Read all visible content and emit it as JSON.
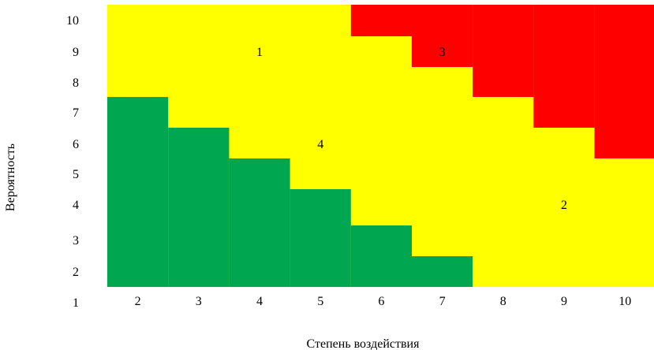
{
  "chart_data": {
    "type": "heatmap",
    "xlabel": "Степень воздействия",
    "ylabel": "Вероятность",
    "x_ticks": [
      "2",
      "3",
      "4",
      "5",
      "6",
      "7",
      "8",
      "9",
      "10"
    ],
    "y_ticks": [
      "10",
      "9",
      "8",
      "7",
      "6",
      "5",
      "4",
      "3",
      "2",
      "1"
    ],
    "columns": [
      2,
      3,
      4,
      5,
      6,
      7,
      8,
      9,
      10
    ],
    "colors": {
      "green": "#00a650",
      "yellow": "#ffff00",
      "red": "#ff0000"
    },
    "zones_by_column": [
      {
        "x": 2,
        "green_top": 7,
        "red_bottom": null
      },
      {
        "x": 3,
        "green_top": 6,
        "red_bottom": null
      },
      {
        "x": 4,
        "green_top": 5,
        "red_bottom": null
      },
      {
        "x": 5,
        "green_top": 4,
        "red_bottom": null
      },
      {
        "x": 6,
        "green_top": 3,
        "red_bottom": 10
      },
      {
        "x": 7,
        "green_top": 2,
        "red_bottom": 9
      },
      {
        "x": 8,
        "green_top": null,
        "red_bottom": 8
      },
      {
        "x": 9,
        "green_top": null,
        "red_bottom": 7
      },
      {
        "x": 10,
        "green_top": null,
        "red_bottom": 6
      }
    ],
    "annotations": [
      {
        "text": "1",
        "x": 4,
        "y": 9
      },
      {
        "text": "3",
        "x": 7,
        "y": 9
      },
      {
        "text": "4",
        "x": 5,
        "y": 6
      },
      {
        "text": "2",
        "x": 9,
        "y": 4
      }
    ]
  }
}
